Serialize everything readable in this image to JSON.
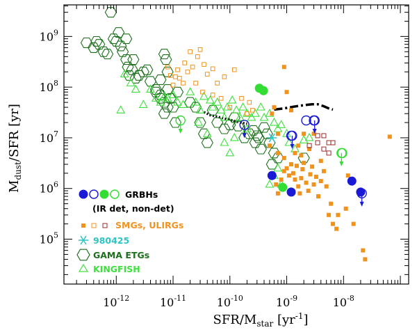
{
  "chart_data": {
    "type": "scatter",
    "title": "",
    "xlabel": "SFR/M",
    "xlabel_sub": "star",
    "xlabel_unit": "[yr",
    "xlabel_unit_sup": "-1",
    "xlabel_unit_end": "]",
    "ylabel": "M",
    "ylabel_sub": "dust",
    "ylabel_rest": "/SFR [yr]",
    "xscale": "log",
    "yscale": "log",
    "xlim": [
      1.2e-13,
      1.4e-07
    ],
    "ylim": [
      13000.0,
      4200000000.0
    ],
    "xticks": [
      {
        "value": 1e-12,
        "base": "10",
        "exp": "-12"
      },
      {
        "value": 1e-11,
        "base": "10",
        "exp": "-11"
      },
      {
        "value": 1e-10,
        "base": "10",
        "exp": "-10"
      },
      {
        "value": 1e-09,
        "base": "10",
        "exp": "-9"
      },
      {
        "value": 1e-08,
        "base": "10",
        "exp": "-8"
      }
    ],
    "yticks": [
      {
        "value": 100000.0,
        "base": "10",
        "exp": "5"
      },
      {
        "value": 1000000.0,
        "base": "10",
        "exp": "6"
      },
      {
        "value": 10000000.0,
        "base": "10",
        "exp": "7"
      },
      {
        "value": 100000000.0,
        "base": "10",
        "exp": "8"
      },
      {
        "value": 1000000000.0,
        "base": "10",
        "exp": "9"
      }
    ],
    "legend_position": "bottom-left",
    "legend": [
      {
        "label": "GRBHs",
        "color": "#1a1ad6"
      },
      {
        "label": "(IR det, non-det)",
        "color": "#000000"
      },
      {
        "label": "SMGs, ULIRGs",
        "color": "#f0921e"
      },
      {
        "label": "980425",
        "color": "#2ec4c4"
      },
      {
        "label": "GAMA ETGs",
        "color": "#1c6f1c"
      },
      {
        "label": "KINGFISH",
        "color": "#3ee03e"
      }
    ],
    "colors": {
      "grb_blue": "#1a1ad6",
      "grb_green": "#33dd33",
      "smg_orange": "#f0921e",
      "ulirg_darkred": "#9a2a2a",
      "cyan_980425": "#2ec4c4",
      "gama_green": "#1c6f1c",
      "kingfish_green": "#3ee03e"
    },
    "series": [
      {
        "kind": "grb_blue_filled",
        "points": [
          [
            5.5e-10,
            1800000.0
          ],
          [
            1.2e-09,
            850000.0
          ],
          [
            1.4e-08,
            1400000.0
          ],
          [
            2e-08,
            850000.0
          ]
        ]
      },
      {
        "kind": "grb_blue_open",
        "points": [
          [
            1.2e-09,
            11000000.0
          ],
          [
            2.2e-09,
            22000000.0
          ],
          [
            3e-09,
            22000000.0
          ]
        ]
      },
      {
        "kind": "grb_blue_open_limit",
        "points": [
          [
            1.8e-10,
            18000000.0
          ],
          [
            1.25e-09,
            11000000.0
          ],
          [
            3.1e-09,
            22000000.0
          ],
          [
            2.1e-08,
            800000.0
          ]
        ]
      },
      {
        "kind": "grb_green_filled",
        "points": [
          [
            3.3e-10,
            95000000.0
          ],
          [
            3.9e-10,
            85000000.0
          ],
          [
            8.5e-10,
            1050000.0
          ]
        ]
      },
      {
        "kind": "grb_green_open",
        "points": [
          [
            9.5e-09,
            5000000.0
          ]
        ]
      },
      {
        "kind": "grb_green_open_limit",
        "points": [
          [
            1.35e-11,
            22000000.0
          ],
          [
            9.2e-09,
            5000000.0
          ]
        ]
      },
      {
        "kind": "smg_filled",
        "points": [
          [
            5.5e-10,
            30000000.0
          ],
          [
            6.5e-10,
            1200000.0
          ],
          [
            7e-10,
            800000.0
          ],
          [
            8e-10,
            1500000.0
          ],
          [
            9e-10,
            2200000.0
          ],
          [
            1e-09,
            2500000.0
          ],
          [
            1.1e-09,
            1800000.0
          ],
          [
            1.2e-09,
            3000000.0
          ],
          [
            1.3e-09,
            2000000.0
          ],
          [
            1.4e-09,
            1500000.0
          ],
          [
            1.5e-09,
            2800000.0
          ],
          [
            1.6e-09,
            1100000.0
          ],
          [
            1.7e-09,
            800000.0
          ],
          [
            1.8e-09,
            1600000.0
          ],
          [
            1.9e-09,
            2400000.0
          ],
          [
            2e-09,
            3200000.0
          ],
          [
            2.2e-09,
            1300000.0
          ],
          [
            2.4e-09,
            900000.0
          ],
          [
            2.6e-09,
            1900000.0
          ],
          [
            2.8e-09,
            2700000.0
          ],
          [
            3e-09,
            1200000.0
          ],
          [
            3.3e-09,
            1700000.0
          ],
          [
            3.6e-09,
            700000.0
          ],
          [
            4e-09,
            1400000.0
          ],
          [
            4.5e-09,
            2200000.0
          ],
          [
            5e-09,
            1100000.0
          ],
          [
            5.5e-09,
            300000.0
          ],
          [
            6e-09,
            500000.0
          ],
          [
            6.5e-09,
            200000.0
          ],
          [
            7.5e-09,
            160000.0
          ],
          [
            8e-09,
            300000.0
          ],
          [
            7e-10,
            5000000.0
          ],
          [
            9e-10,
            4000000.0
          ],
          [
            1.4e-09,
            5000000.0
          ],
          [
            1.8e-09,
            4500000.0
          ],
          [
            2.5e-09,
            6000000.0
          ],
          [
            9e-10,
            250000000.0
          ],
          [
            1e-09,
            80000000.0
          ],
          [
            1.2e-09,
            35000000.0
          ],
          [
            6e-10,
            40000000.0
          ],
          [
            2e-09,
            12000000.0
          ],
          [
            4e-09,
            3500000.0
          ],
          [
            1.1e-08,
            400000.0
          ],
          [
            1.5e-08,
            200000.0
          ],
          [
            2.2e-08,
            60000.0
          ],
          [
            2.4e-08,
            40000.0
          ],
          [
            1.2e-08,
            1800000.0
          ],
          [
            6.5e-08,
            10500000.0
          ],
          [
            3e-09,
            12000000.0
          ],
          [
            7e-10,
            12000000.0
          ],
          [
            1.6e-09,
            7000000.0
          ],
          [
            5e-10,
            7000000.0
          ]
        ]
      },
      {
        "kind": "smg_open",
        "points": [
          [
            8e-12,
            250000000.0
          ],
          [
            9e-12,
            170000000.0
          ],
          [
            1e-11,
            110000000.0
          ],
          [
            1.1e-11,
            160000000.0
          ],
          [
            1.2e-11,
            220000000.0
          ],
          [
            1.3e-11,
            150000000.0
          ],
          [
            1.6e-11,
            300000000.0
          ],
          [
            1.8e-11,
            200000000.0
          ],
          [
            2.2e-11,
            250000000.0
          ],
          [
            2.7e-11,
            400000000.0
          ],
          [
            2e-11,
            500000000.0
          ],
          [
            3e-11,
            550000000.0
          ],
          [
            3.5e-11,
            280000000.0
          ],
          [
            4e-11,
            180000000.0
          ],
          [
            5e-11,
            230000000.0
          ],
          [
            6e-11,
            120000000.0
          ],
          [
            8e-11,
            160000000.0
          ],
          [
            1.2e-10,
            220000000.0
          ],
          [
            1.6e-10,
            60000000.0
          ],
          [
            2.2e-10,
            50000000.0
          ],
          [
            1.5e-11,
            120000000.0
          ],
          [
            2.5e-11,
            120000000.0
          ],
          [
            3.3e-11,
            80000000.0
          ],
          [
            5e-11,
            70000000.0
          ],
          [
            7e-11,
            60000000.0
          ],
          [
            1e-10,
            40000000.0
          ],
          [
            2e-10,
            30000000.0
          ],
          [
            2.5e-10,
            35000000.0
          ]
        ]
      },
      {
        "kind": "ulirg_open",
        "points": [
          [
            3.5e-09,
            11000000.0
          ],
          [
            4.5e-09,
            11000000.0
          ],
          [
            5.5e-09,
            8000000.0
          ],
          [
            6.5e-09,
            8000000.0
          ],
          [
            4.5e-09,
            6000000.0
          ],
          [
            5.5e-09,
            5000000.0
          ],
          [
            2.5e-09,
            7000000.0
          ],
          [
            3.5e-09,
            8000000.0
          ]
        ]
      },
      {
        "kind": "cyan_980425",
        "points": [
          [
            5.5e-10,
            10000000.0
          ]
        ]
      },
      {
        "kind": "gama",
        "points": [
          [
            3e-13,
            750000000.0
          ],
          [
            4e-13,
            600000000.0
          ],
          [
            4.5e-13,
            800000000.0
          ],
          [
            5e-13,
            700000000.0
          ],
          [
            6e-13,
            500000000.0
          ],
          [
            7e-13,
            450000000.0
          ],
          [
            8e-13,
            3000000000.0
          ],
          [
            9e-13,
            900000000.0
          ],
          [
            1e-12,
            800000000.0
          ],
          [
            1.1e-12,
            1200000000.0
          ],
          [
            1.2e-12,
            650000000.0
          ],
          [
            1.3e-12,
            500000000.0
          ],
          [
            1.5e-12,
            900000000.0
          ],
          [
            1.5e-12,
            350000000.0
          ],
          [
            1.6e-12,
            250000000.0
          ],
          [
            1.7e-12,
            170000000.0
          ],
          [
            1.9e-12,
            220000000.0
          ],
          [
            2e-12,
            350000000.0
          ],
          [
            2.2e-12,
            150000000.0
          ],
          [
            2.5e-12,
            170000000.0
          ],
          [
            3e-12,
            200000000.0
          ],
          [
            3.5e-12,
            220000000.0
          ],
          [
            4e-12,
            130000000.0
          ],
          [
            5e-12,
            90000000.0
          ],
          [
            6e-12,
            70000000.0
          ],
          [
            7e-12,
            450000000.0
          ],
          [
            7.5e-12,
            350000000.0
          ],
          [
            8e-12,
            200000000.0
          ],
          [
            6e-12,
            140000000.0
          ],
          [
            5e-12,
            80000000.0
          ],
          [
            6e-12,
            60000000.0
          ],
          [
            7e-12,
            50000000.0
          ],
          [
            8e-12,
            90000000.0
          ],
          [
            9e-12,
            60000000.0
          ],
          [
            1e-11,
            40000000.0
          ],
          [
            7e-12,
            30000000.0
          ],
          [
            8e-12,
            40000000.0
          ],
          [
            1.1e-11,
            20000000.0
          ],
          [
            1.2e-11,
            80000000.0
          ],
          [
            2e-11,
            50000000.0
          ],
          [
            2.5e-11,
            40000000.0
          ],
          [
            3e-11,
            20000000.0
          ],
          [
            3.5e-11,
            12000000.0
          ],
          [
            4e-11,
            8000000.0
          ],
          [
            5e-11,
            35000000.0
          ],
          [
            6e-11,
            20000000.0
          ],
          [
            8e-11,
            15000000.0
          ],
          [
            1e-10,
            18000000.0
          ],
          [
            1.2e-10,
            25000000.0
          ],
          [
            1.4e-10,
            17000000.0
          ],
          [
            1.8e-10,
            10000000.0
          ],
          [
            2.2e-10,
            12000000.0
          ],
          [
            2.8e-10,
            8000000.0
          ],
          [
            3.2e-10,
            10000000.0
          ],
          [
            3.5e-10,
            6000000.0
          ],
          [
            4e-10,
            16000000.0
          ],
          [
            4.5e-10,
            12000000.0
          ],
          [
            5e-10,
            8000000.0
          ],
          [
            5.5e-10,
            3000000.0
          ],
          [
            6e-10,
            5000000.0
          ],
          [
            3e-10,
            11000000.0
          ],
          [
            2.6e-10,
            14000000.0
          ],
          [
            7e-10,
            4000000.0
          ],
          [
            2e-09,
            4000000.0
          ]
        ]
      },
      {
        "kind": "kingfish",
        "points": [
          [
            1.4e-12,
            180000000.0
          ],
          [
            1.8e-12,
            120000000.0
          ],
          [
            2.2e-12,
            90000000.0
          ],
          [
            1.2e-12,
            35000000.0
          ],
          [
            4e-12,
            90000000.0
          ],
          [
            5e-12,
            60000000.0
          ],
          [
            6e-12,
            50000000.0
          ],
          [
            8e-12,
            60000000.0
          ],
          [
            1e-11,
            70000000.0
          ],
          [
            1.2e-11,
            50000000.0
          ],
          [
            1.5e-11,
            45000000.0
          ],
          [
            2e-11,
            80000000.0
          ],
          [
            2.5e-11,
            50000000.0
          ],
          [
            3e-11,
            35000000.0
          ],
          [
            3.5e-11,
            65000000.0
          ],
          [
            4.5e-11,
            55000000.0
          ],
          [
            5e-11,
            40000000.0
          ],
          [
            6e-11,
            50000000.0
          ],
          [
            7e-11,
            35000000.0
          ],
          [
            8e-11,
            25000000.0
          ],
          [
            9e-11,
            40000000.0
          ],
          [
            1.1e-10,
            55000000.0
          ],
          [
            1.3e-10,
            35000000.0
          ],
          [
            1.5e-10,
            25000000.0
          ],
          [
            1.7e-10,
            40000000.0
          ],
          [
            2e-10,
            30000000.0
          ],
          [
            2.4e-10,
            25000000.0
          ],
          [
            2.8e-10,
            30000000.0
          ],
          [
            3.5e-10,
            40000000.0
          ],
          [
            4e-10,
            25000000.0
          ],
          [
            5e-10,
            30000000.0
          ],
          [
            6e-10,
            20000000.0
          ],
          [
            7e-10,
            15000000.0
          ],
          [
            8e-10,
            18000000.0
          ],
          [
            1e-09,
            12000000.0
          ],
          [
            1.1e-09,
            8000000.0
          ],
          [
            1.4e-09,
            6000000.0
          ],
          [
            2e-09,
            9000000.0
          ],
          [
            2.5e-09,
            10000000.0
          ],
          [
            2.8e-11,
            20000000.0
          ],
          [
            4e-11,
            12000000.0
          ],
          [
            8e-11,
            8000000.0
          ],
          [
            1e-10,
            5000000.0
          ],
          [
            2e-10,
            15000000.0
          ],
          [
            7e-10,
            2500000.0
          ],
          [
            5e-10,
            1200000.0
          ],
          [
            8e-10,
            1200000.0
          ],
          [
            6e-10,
            1800000.0
          ],
          [
            1.2e-10,
            10000000.0
          ],
          [
            3e-12,
            45000000.0
          ],
          [
            7e-12,
            65000000.0
          ]
        ]
      }
    ],
    "curves": [
      {
        "style": "dotted",
        "points": [
          [
            3.5e-11,
            32000000.0
          ],
          [
            4.5e-11,
            28000000.0
          ],
          [
            6e-11,
            26000000.0
          ],
          [
            8e-11,
            24000000.0
          ],
          [
            1.1e-10,
            22000000.0
          ],
          [
            1.5e-10,
            20000000.0
          ],
          [
            2e-10,
            19000000.0
          ]
        ]
      },
      {
        "style": "dashed",
        "points": [
          [
            6e-10,
            36000000.0
          ],
          [
            9e-10,
            38000000.0
          ],
          [
            1.3e-09,
            41000000.0
          ],
          [
            2e-09,
            44000000.0
          ],
          [
            2.8e-09,
            46000000.0
          ],
          [
            3.5e-09,
            46000000.0
          ],
          [
            4.5e-09,
            42000000.0
          ],
          [
            5.5e-09,
            38000000.0
          ],
          [
            6.5e-09,
            36000000.0
          ]
        ]
      }
    ]
  }
}
